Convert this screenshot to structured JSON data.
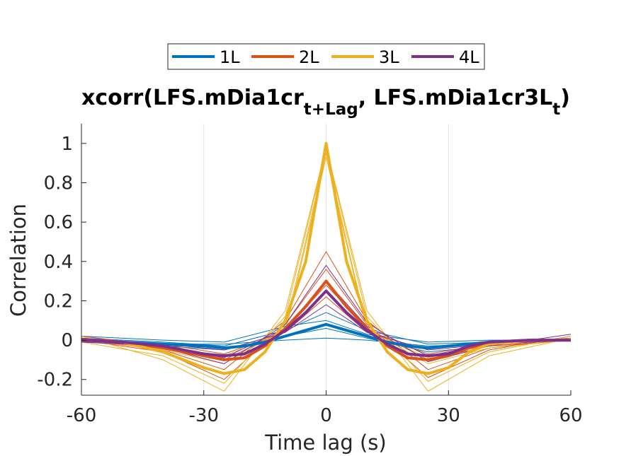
{
  "chart_data": {
    "type": "line",
    "title_parts": {
      "part1": "xcorr(LFS.mDia1cr",
      "sub1": "t+Lag",
      "part2": ", LFS.mDia1cr3L",
      "sub2": "t",
      "part3": ")"
    },
    "xlabel": "Time lag (s)",
    "ylabel": "Correlation",
    "xlim": [
      -60,
      60
    ],
    "ylim": [
      -0.28,
      1.1
    ],
    "xticks": [
      -60,
      -30,
      0,
      30,
      60
    ],
    "yticks": [
      -0.2,
      0,
      0.2,
      0.4,
      0.6,
      0.8,
      1
    ],
    "xtick_labels": [
      "-60",
      "-30",
      "0",
      "30",
      "60"
    ],
    "ytick_labels": [
      "-0.2",
      "0",
      "0.2",
      "0.4",
      "0.6",
      "0.8",
      "1"
    ],
    "grid": "x",
    "legend_placement": "top-center, horizontal",
    "series": [
      {
        "name": "1L",
        "color": "#0072BD",
        "mean": {
          "x": [
            -60,
            -50,
            -40,
            -30,
            -25,
            -20,
            -15,
            -10,
            -5,
            0,
            5,
            10,
            15,
            20,
            25,
            30,
            35,
            40,
            50,
            60
          ],
          "y": [
            0.0,
            -0.01,
            -0.02,
            -0.03,
            -0.04,
            -0.03,
            -0.01,
            0.02,
            0.05,
            0.08,
            0.05,
            0.02,
            -0.01,
            -0.03,
            -0.04,
            -0.03,
            -0.02,
            -0.01,
            0.0,
            0.0
          ]
        },
        "individual": [
          {
            "x": [
              -60,
              -40,
              -25,
              -10,
              0,
              10,
              25,
              40,
              60
            ],
            "y": [
              0.01,
              -0.01,
              -0.03,
              0.05,
              0.14,
              0.05,
              -0.02,
              -0.01,
              0.0
            ]
          },
          {
            "x": [
              -60,
              -40,
              -25,
              -10,
              0,
              10,
              25,
              40,
              60
            ],
            "y": [
              -0.01,
              -0.03,
              -0.05,
              0.02,
              0.06,
              0.01,
              -0.06,
              -0.03,
              0.0
            ]
          },
          {
            "x": [
              -60,
              -40,
              -25,
              -10,
              0,
              10,
              25,
              40,
              60
            ],
            "y": [
              0.0,
              -0.02,
              -0.02,
              0.0,
              0.01,
              0.0,
              -0.03,
              -0.02,
              0.01
            ]
          },
          {
            "x": [
              -60,
              -40,
              -25,
              -10,
              0,
              10,
              25,
              40,
              60
            ],
            "y": [
              0.02,
              0.0,
              -0.01,
              0.07,
              0.1,
              0.03,
              -0.01,
              0.0,
              0.0
            ]
          }
        ]
      },
      {
        "name": "2L",
        "color": "#D95319",
        "mean": {
          "x": [
            -60,
            -50,
            -40,
            -30,
            -25,
            -20,
            -15,
            -10,
            -5,
            0,
            5,
            10,
            15,
            20,
            25,
            30,
            35,
            40,
            50,
            60
          ],
          "y": [
            0.0,
            -0.01,
            -0.04,
            -0.08,
            -0.1,
            -0.09,
            -0.03,
            0.06,
            0.17,
            0.3,
            0.17,
            0.06,
            -0.03,
            -0.09,
            -0.1,
            -0.08,
            -0.04,
            -0.02,
            0.0,
            0.0
          ]
        },
        "individual": [
          {
            "x": [
              -60,
              -40,
              -25,
              -10,
              0,
              10,
              25,
              40,
              60
            ],
            "y": [
              0.01,
              -0.05,
              -0.15,
              0.1,
              0.45,
              0.1,
              -0.15,
              -0.04,
              0.01
            ]
          },
          {
            "x": [
              -60,
              -40,
              -25,
              -10,
              0,
              10,
              25,
              40,
              60
            ],
            "y": [
              -0.01,
              -0.02,
              -0.07,
              0.04,
              0.22,
              0.04,
              -0.07,
              -0.02,
              0.0
            ]
          },
          {
            "x": [
              -60,
              -40,
              -25,
              -10,
              0,
              10,
              25,
              40,
              60
            ],
            "y": [
              0.0,
              -0.06,
              -0.2,
              0.08,
              0.36,
              0.08,
              -0.19,
              -0.05,
              0.02
            ]
          },
          {
            "x": [
              -60,
              -40,
              -25,
              -10,
              0,
              10,
              25,
              40,
              60
            ],
            "y": [
              0.02,
              -0.03,
              -0.1,
              0.05,
              0.28,
              0.06,
              -0.1,
              -0.03,
              0.0
            ]
          }
        ]
      },
      {
        "name": "3L",
        "color": "#EDB120",
        "mean": {
          "x": [
            -60,
            -50,
            -40,
            -30,
            -25,
            -20,
            -15,
            -10,
            -5,
            0,
            5,
            10,
            15,
            20,
            25,
            30,
            35,
            40,
            50,
            60
          ],
          "y": [
            0.0,
            -0.01,
            -0.06,
            -0.14,
            -0.17,
            -0.15,
            -0.06,
            0.1,
            0.4,
            1.0,
            0.4,
            0.1,
            -0.06,
            -0.15,
            -0.17,
            -0.14,
            -0.06,
            -0.02,
            0.0,
            0.0
          ]
        },
        "individual": [
          {
            "x": [
              -60,
              -40,
              -25,
              -10,
              0,
              10,
              25,
              40,
              60
            ],
            "y": [
              0.02,
              -0.1,
              -0.26,
              0.15,
              0.98,
              0.15,
              -0.26,
              -0.08,
              0.01
            ]
          },
          {
            "x": [
              -60,
              -40,
              -25,
              -10,
              0,
              10,
              25,
              40,
              60
            ],
            "y": [
              0.0,
              -0.05,
              -0.12,
              0.06,
              0.95,
              0.06,
              -0.12,
              -0.04,
              0.0
            ]
          },
          {
            "x": [
              -60,
              -40,
              -25,
              -10,
              0,
              10,
              25,
              40,
              60
            ],
            "y": [
              -0.01,
              -0.08,
              -0.22,
              0.12,
              0.97,
              0.12,
              -0.21,
              -0.06,
              0.02
            ]
          },
          {
            "x": [
              -60,
              -40,
              -25,
              -10,
              0,
              10,
              25,
              40,
              60
            ],
            "y": [
              0.01,
              -0.03,
              -0.08,
              0.04,
              0.93,
              0.05,
              -0.09,
              -0.02,
              0.0
            ]
          }
        ]
      },
      {
        "name": "4L",
        "color": "#7E2F8E",
        "mean": {
          "x": [
            -60,
            -50,
            -40,
            -30,
            -25,
            -20,
            -15,
            -10,
            -5,
            0,
            5,
            10,
            15,
            20,
            25,
            30,
            35,
            40,
            50,
            60
          ],
          "y": [
            0.0,
            -0.01,
            -0.03,
            -0.07,
            -0.08,
            -0.07,
            -0.02,
            0.05,
            0.14,
            0.25,
            0.14,
            0.05,
            -0.02,
            -0.07,
            -0.08,
            -0.07,
            -0.03,
            -0.01,
            0.0,
            0.0
          ]
        },
        "individual": [
          {
            "x": [
              -60,
              -40,
              -25,
              -10,
              0,
              10,
              25,
              40,
              60
            ],
            "y": [
              0.0,
              -0.04,
              -0.12,
              0.08,
              0.38,
              0.09,
              -0.11,
              -0.03,
              0.03
            ]
          },
          {
            "x": [
              -60,
              -40,
              -25,
              -10,
              0,
              10,
              25,
              40,
              60
            ],
            "y": [
              0.01,
              -0.02,
              -0.05,
              0.04,
              0.18,
              0.04,
              -0.05,
              -0.02,
              0.0
            ]
          },
          {
            "x": [
              -60,
              -40,
              -25,
              -10,
              0,
              10,
              25,
              40,
              60
            ],
            "y": [
              -0.01,
              -0.03,
              -0.09,
              0.06,
              0.3,
              0.07,
              -0.08,
              -0.02,
              0.0
            ]
          }
        ]
      }
    ]
  }
}
